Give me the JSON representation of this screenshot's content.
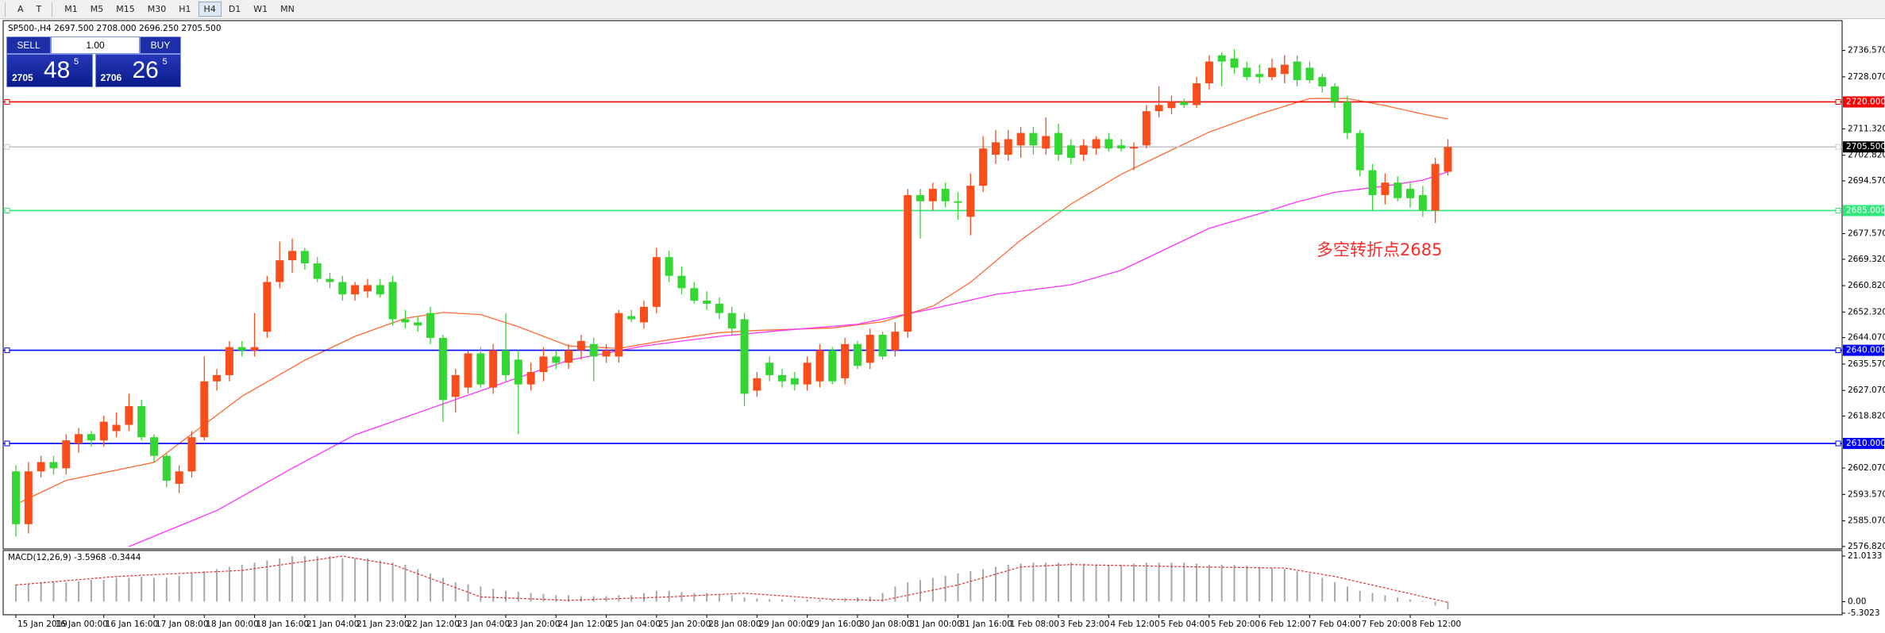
{
  "toolbar": {
    "tools": [
      "A",
      "T"
    ],
    "timeframes": [
      "M1",
      "M5",
      "M15",
      "M30",
      "H1",
      "H4",
      "D1",
      "W1",
      "MN"
    ],
    "active_timeframe": "H4"
  },
  "trade_panel": {
    "sell": "SELL",
    "lots": "1.00",
    "buy": "BUY",
    "bid": {
      "prefix": "2705",
      "main": "48",
      "small": "5"
    },
    "ask": {
      "prefix": "2706",
      "main": "26",
      "small": "5"
    }
  },
  "chart_data": {
    "type": "candlestick",
    "title": "SP500-,H4 2697.500 2708.000 2696.250 2705.500",
    "up_color": "#f94e1c",
    "down_color": "#33d633",
    "categories": [
      "15 Jan 2019",
      null,
      null,
      "16 Jan 00:00",
      null,
      null,
      null,
      "16 Jan 16:00",
      null,
      null,
      null,
      "17 Jan 08:00",
      null,
      null,
      null,
      "18 Jan 00:00",
      null,
      null,
      null,
      "18 Jan 16:00",
      null,
      null,
      null,
      "21 Jan 04:00",
      null,
      null,
      null,
      "21 Jan 23:00",
      null,
      null,
      null,
      "22 Jan 12:00",
      null,
      null,
      null,
      "23 Jan 04:00",
      null,
      null,
      null,
      "23 Jan 20:00",
      null,
      null,
      null,
      "24 Jan 12:00",
      null,
      null,
      null,
      "25 Jan 04:00",
      null,
      null,
      null,
      "25 Jan 20:00",
      null,
      null,
      null,
      "28 Jan 08:00",
      null,
      null,
      null,
      "29 Jan 00:00",
      null,
      null,
      null,
      "29 Jan 16:00",
      null,
      null,
      null,
      "30 Jan 08:00",
      null,
      null,
      null,
      "31 Jan 00:00",
      null,
      null,
      null,
      "31 Jan 16:00",
      null,
      null,
      null,
      "1 Feb 08:00",
      null,
      null,
      null,
      "3 Feb 23:00",
      null,
      null,
      null,
      "4 Feb 12:00",
      null,
      null,
      null,
      "5 Feb 04:00",
      null,
      null,
      null,
      "5 Feb 20:00",
      null,
      null,
      null,
      "6 Feb 12:00",
      null,
      null,
      null,
      "7 Feb 04:00",
      null,
      null,
      null,
      "7 Feb 20:00",
      null,
      null,
      null,
      "8 Feb 12:00",
      null,
      null,
      null
    ],
    "ohlc": [
      [
        2601,
        2603,
        2580,
        2584
      ],
      [
        2584,
        2604,
        2581,
        2601
      ],
      [
        2601,
        2606,
        2599,
        2604
      ],
      [
        2604,
        2606,
        2600,
        2602
      ],
      [
        2602,
        2613,
        2600,
        2611
      ],
      [
        2610,
        2615,
        2607,
        2613
      ],
      [
        2613,
        2614,
        2609,
        2611
      ],
      [
        2611,
        2619,
        2609,
        2617
      ],
      [
        2614,
        2620,
        2612,
        2616
      ],
      [
        2616,
        2626,
        2614,
        2622
      ],
      [
        2622,
        2624,
        2611,
        2612
      ],
      [
        2612,
        2613,
        2604,
        2606
      ],
      [
        2606,
        2607,
        2596,
        2598
      ],
      [
        2597,
        2603,
        2594,
        2601
      ],
      [
        2601,
        2614,
        2599,
        2612
      ],
      [
        2612,
        2638,
        2611,
        2630
      ],
      [
        2630,
        2634,
        2627,
        2632
      ],
      [
        2632,
        2643,
        2630,
        2641
      ],
      [
        2641,
        2643,
        2638,
        2640
      ],
      [
        2640,
        2652,
        2638,
        2641
      ],
      [
        2646,
        2664,
        2644,
        2662
      ],
      [
        2662,
        2675,
        2660,
        2669
      ],
      [
        2669,
        2676,
        2665,
        2672
      ],
      [
        2672,
        2673,
        2666,
        2668
      ],
      [
        2668,
        2670,
        2662,
        2663
      ],
      [
        2663,
        2665,
        2660,
        2662
      ],
      [
        2662,
        2664,
        2656,
        2658
      ],
      [
        2658,
        2662,
        2656,
        2661
      ],
      [
        2659,
        2663,
        2657,
        2661
      ],
      [
        2661,
        2663,
        2657,
        2658
      ],
      [
        2662,
        2664,
        2648,
        2650
      ],
      [
        2650,
        2653,
        2647,
        2649
      ],
      [
        2649,
        2651,
        2646,
        2648
      ],
      [
        2652,
        2654,
        2642,
        2644
      ],
      [
        2644,
        2645,
        2617,
        2624
      ],
      [
        2625,
        2634,
        2620,
        2632
      ],
      [
        2628,
        2640,
        2626,
        2639
      ],
      [
        2639,
        2641,
        2628,
        2629
      ],
      [
        2628,
        2642,
        2626,
        2640
      ],
      [
        2640,
        2652,
        2630,
        2632
      ],
      [
        2637,
        2640,
        2613,
        2629
      ],
      [
        2629,
        2636,
        2627,
        2633
      ],
      [
        2633,
        2641,
        2630,
        2638
      ],
      [
        2638,
        2640,
        2634,
        2636
      ],
      [
        2636,
        2642,
        2634,
        2640
      ],
      [
        2640,
        2645,
        2637,
        2643
      ],
      [
        2642,
        2644,
        2630,
        2638
      ],
      [
        2638,
        2642,
        2636,
        2640
      ],
      [
        2638,
        2653,
        2636,
        2652
      ],
      [
        2651,
        2653,
        2649,
        2650
      ],
      [
        2649,
        2656,
        2647,
        2654
      ],
      [
        2654,
        2673,
        2652,
        2670
      ],
      [
        2670,
        2672,
        2662,
        2664
      ],
      [
        2664,
        2667,
        2658,
        2660
      ],
      [
        2660,
        2662,
        2655,
        2656
      ],
      [
        2656,
        2659,
        2653,
        2655
      ],
      [
        2655,
        2657,
        2650,
        2652
      ],
      [
        2652,
        2654,
        2645,
        2647
      ],
      [
        2650,
        2652,
        2622,
        2626
      ],
      [
        2627,
        2633,
        2625,
        2631
      ],
      [
        2636,
        2638,
        2630,
        2632
      ],
      [
        2632,
        2634,
        2628,
        2630
      ],
      [
        2631,
        2633,
        2627,
        2629
      ],
      [
        2629,
        2638,
        2627,
        2636
      ],
      [
        2630,
        2642,
        2628,
        2640
      ],
      [
        2640,
        2641,
        2629,
        2630
      ],
      [
        2631,
        2644,
        2629,
        2642
      ],
      [
        2642,
        2643,
        2634,
        2635
      ],
      [
        2636,
        2647,
        2634,
        2645
      ],
      [
        2645,
        2646,
        2637,
        2638
      ],
      [
        2640,
        2649,
        2638,
        2646
      ],
      [
        2646,
        2692,
        2644,
        2690
      ],
      [
        2690,
        2692,
        2676,
        2688
      ],
      [
        2688,
        2694,
        2685,
        2692
      ],
      [
        2692,
        2694,
        2686,
        2688
      ],
      [
        2688,
        2691,
        2682,
        2687.5
      ],
      [
        2683,
        2697,
        2677,
        2693
      ],
      [
        2693,
        2709,
        2691,
        2705
      ],
      [
        2703,
        2711,
        2700,
        2707
      ],
      [
        2703,
        2711,
        2701,
        2708
      ],
      [
        2706,
        2712,
        2702,
        2710
      ],
      [
        2710,
        2712,
        2703,
        2706
      ],
      [
        2705,
        2715,
        2703,
        2709
      ],
      [
        2710,
        2713,
        2701,
        2703
      ],
      [
        2706,
        2708,
        2700,
        2702
      ],
      [
        2703,
        2708,
        2701,
        2706
      ],
      [
        2705,
        2709,
        2703,
        2708
      ],
      [
        2708,
        2710,
        2704,
        2705
      ],
      [
        2706,
        2708,
        2704,
        2705
      ],
      [
        2705,
        2707,
        2698,
        2705.5
      ],
      [
        2706,
        2719,
        2705,
        2717
      ],
      [
        2717,
        2725,
        2715,
        2719
      ],
      [
        2718,
        2722,
        2716,
        2720
      ],
      [
        2720,
        2721,
        2718,
        2719
      ],
      [
        2719,
        2728,
        2718,
        2726
      ],
      [
        2726,
        2735,
        2724,
        2733
      ],
      [
        2735,
        2736,
        2725,
        2733
      ],
      [
        2734,
        2737,
        2729,
        2731
      ],
      [
        2731,
        2733,
        2727,
        2728
      ],
      [
        2729,
        2732,
        2726,
        2728
      ],
      [
        2728,
        2734,
        2727,
        2731
      ],
      [
        2729,
        2735,
        2726,
        2732
      ],
      [
        2733,
        2735,
        2725,
        2727
      ],
      [
        2731,
        2733,
        2726,
        2727
      ],
      [
        2728,
        2729,
        2723,
        2725
      ],
      [
        2725,
        2726,
        2718,
        2720
      ],
      [
        2720,
        2722,
        2708,
        2710
      ],
      [
        2710,
        2711,
        2696,
        2698
      ],
      [
        2698,
        2700,
        2685,
        2690
      ],
      [
        2690,
        2697,
        2687,
        2694
      ],
      [
        2694,
        2696,
        2688,
        2689
      ],
      [
        2692,
        2694,
        2686,
        2689
      ],
      [
        2690,
        2693,
        2683,
        2685
      ],
      [
        2685,
        2702,
        2681,
        2700
      ],
      [
        2697.5,
        2708,
        2696.25,
        2705.5
      ]
    ],
    "ylim": [
      2576.03,
      2746.18
    ],
    "yticks": [
      {
        "value": 2736.57,
        "label": "2736.570"
      },
      {
        "value": 2728.07,
        "label": "2728.070"
      },
      {
        "value": 2711.32,
        "label": "2711.320"
      },
      {
        "value": 2702.82,
        "label": "2702.820"
      },
      {
        "value": 2694.57,
        "label": "2694.570"
      },
      {
        "value": 2677.57,
        "label": "2677.570"
      },
      {
        "value": 2669.32,
        "label": "2669.320"
      },
      {
        "value": 2660.82,
        "label": "2660.820"
      },
      {
        "value": 2652.32,
        "label": "2652.320"
      },
      {
        "value": 2644.07,
        "label": "2644.070"
      },
      {
        "value": 2635.57,
        "label": "2635.570"
      },
      {
        "value": 2627.07,
        "label": "2627.070"
      },
      {
        "value": 2618.82,
        "label": "2618.820"
      },
      {
        "value": 2602.07,
        "label": "2602.070"
      },
      {
        "value": 2593.57,
        "label": "2593.570"
      },
      {
        "value": 2585.07,
        "label": "2585.070"
      },
      {
        "value": 2576.82,
        "label": "2576.820"
      }
    ],
    "levels": [
      {
        "value": 2720,
        "label": "2720.000",
        "color": "#ff0000",
        "label_bg": "#ff0000"
      },
      {
        "value": 2705.5,
        "label": "2705.500",
        "color": "#c8c8c8",
        "label_bg": "#000000"
      },
      {
        "value": 2685,
        "label": "2685.000",
        "color": "#2ee87a",
        "label_bg": "#2ee87a"
      },
      {
        "value": 2640,
        "label": "2640.000",
        "color": "#0000ff",
        "label_bg": "#0000ff"
      },
      {
        "value": 2610,
        "label": "2610.000",
        "color": "#0000ff",
        "label_bg": "#0000ff"
      }
    ],
    "ma_lines": [
      {
        "color": "#ff6a33",
        "x": [
          0,
          4,
          11,
          18,
          23,
          27,
          31,
          34,
          37,
          40,
          44,
          48,
          52,
          56,
          59,
          65,
          69,
          73,
          76,
          80,
          84,
          88,
          92,
          95,
          99,
          103,
          106,
          109,
          112,
          114
        ],
        "values": [
          2590.4,
          2598.1,
          2603.9,
          2625.2,
          2636.8,
          2644.5,
          2650.3,
          2652.2,
          2651.5,
          2647.6,
          2641.4,
          2640.6,
          2643.4,
          2645.7,
          2646.4,
          2647.2,
          2649.2,
          2654.2,
          2661.9,
          2675.5,
          2687.1,
          2696.7,
          2704.5,
          2710.3,
          2716.1,
          2721.1,
          2721.1,
          2718.8,
          2716.1,
          2714.5
        ]
      },
      {
        "color": "#ff33ff",
        "x": [
          9,
          16,
          22,
          27,
          33,
          39,
          44,
          50,
          56,
          61,
          67,
          73,
          78,
          84,
          88,
          92,
          95,
          99,
          102,
          105,
          109,
          112,
          114
        ],
        "values": [
          2576.8,
          2588.4,
          2602.0,
          2612.8,
          2621.3,
          2629.8,
          2636.8,
          2641.4,
          2644.5,
          2646.4,
          2648.4,
          2653.4,
          2658.0,
          2661.1,
          2665.8,
          2673.5,
          2679.3,
          2684.0,
          2687.8,
          2690.9,
          2692.9,
          2694.8,
          2697.5
        ]
      }
    ],
    "annotation": {
      "text": "多空转折点2685",
      "color": "#ff2a2a"
    },
    "macd": {
      "title": "MACD(12,26,9) -3.5968 -0.3444",
      "ylim": [
        -6.03,
        23.57
      ],
      "yticks": [
        21.0133,
        {
          "value": 0,
          "label": "0.00"
        },
        -5.3023
      ],
      "histogram_color": "#a8a8a8",
      "histogram": [
        8,
        8,
        8.5,
        9,
        9,
        9.5,
        10,
        10,
        11,
        11,
        11.5,
        11,
        11,
        12,
        13,
        14,
        15,
        16,
        17,
        18,
        19,
        20,
        21,
        21,
        21,
        21,
        20,
        20,
        20,
        19,
        18,
        17,
        15,
        13,
        11,
        9,
        8,
        7,
        6,
        5,
        4.5,
        4,
        3.5,
        3,
        3,
        2.5,
        2.5,
        2.5,
        3,
        3,
        4,
        5,
        5,
        4.5,
        4,
        4,
        3.5,
        3,
        2,
        1.5,
        1.2,
        1,
        1,
        1,
        1,
        1,
        1.5,
        2,
        2.5,
        4,
        7,
        9,
        10,
        11,
        12,
        13,
        14,
        15,
        16,
        17,
        17.5,
        18,
        18,
        18,
        18,
        17.5,
        17,
        17,
        17,
        17.5,
        18,
        18,
        18,
        18,
        17.5,
        17,
        17,
        17,
        16.5,
        16,
        15.5,
        15,
        14,
        13,
        11,
        9,
        7,
        5,
        4,
        3,
        2,
        1,
        0.3,
        -1.8,
        -3.6
      ],
      "signal": {
        "color": "#e03030",
        "x": [
          0,
          8,
          18,
          26,
          30,
          37,
          44,
          52,
          58,
          65,
          69,
          75,
          80,
          84,
          94,
          101,
          105,
          110,
          114
        ],
        "values": [
          7.7,
          11.6,
          14.4,
          21.0,
          17.1,
          2.2,
          0.6,
          2.2,
          3.9,
          1.1,
          0.6,
          7.7,
          16.0,
          17.1,
          16.0,
          15.5,
          11.6,
          5.0,
          -0.34
        ]
      }
    }
  }
}
